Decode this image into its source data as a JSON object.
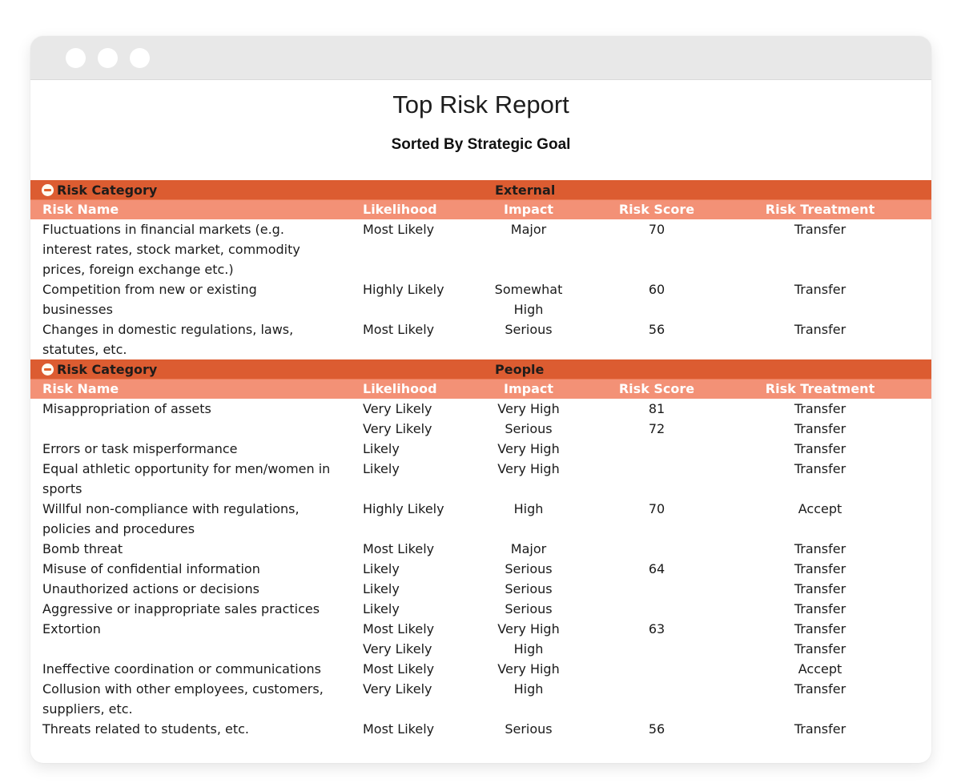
{
  "window_controls": [
    "close",
    "minimize",
    "maximize"
  ],
  "report": {
    "title": "Top Risk Report",
    "subtitle": "Sorted By Strategic Goal"
  },
  "table": {
    "category_header_label": "Risk Category",
    "columns": {
      "name": "Risk Name",
      "likelihood": "Likelihood",
      "impact": "Impact",
      "score": "Risk Score",
      "treatment": "Risk Treatment"
    },
    "sections": [
      {
        "category": "External",
        "rows": [
          {
            "name": "Fluctuations in financial markets (e.g. interest rates, stock market, commodity prices, foreign exchange etc.)",
            "likelihood": "Most Likely",
            "impact": "Major",
            "score": "70",
            "treatment": "Transfer"
          },
          {
            "name": "Competition from new or existing businesses",
            "likelihood": "Highly Likely",
            "impact": "Somewhat High",
            "score": "60",
            "treatment": "Transfer"
          },
          {
            "name": "Changes in domestic regulations, laws, statutes, etc.",
            "likelihood": "Most Likely",
            "impact": "Serious",
            "score": "56",
            "treatment": "Transfer"
          }
        ]
      },
      {
        "category": "People",
        "rows": [
          {
            "name": "Misappropriation of assets",
            "likelihood": "Very Likely",
            "impact": "Very High",
            "score": "81",
            "treatment": "Transfer"
          },
          {
            "name": "",
            "likelihood": "Very Likely",
            "impact": "Serious",
            "score": "72",
            "treatment": "Transfer"
          },
          {
            "name": "Errors or task misperformance",
            "likelihood": "Likely",
            "impact": "Very High",
            "score": "",
            "treatment": "Transfer"
          },
          {
            "name": "Equal athletic opportunity for men/women in sports",
            "likelihood": "Likely",
            "impact": "Very High",
            "score": "",
            "treatment": "Transfer"
          },
          {
            "name": "Willful non-compliance with regulations, policies and procedures",
            "likelihood": "Highly Likely",
            "impact": "High",
            "score": "70",
            "treatment": "Accept"
          },
          {
            "name": "Bomb threat",
            "likelihood": "Most Likely",
            "impact": "Major",
            "score": "",
            "treatment": "Transfer"
          },
          {
            "name": "Misuse of confidential information",
            "likelihood": "Likely",
            "impact": "Serious",
            "score": "64",
            "treatment": "Transfer"
          },
          {
            "name": "Unauthorized actions or decisions",
            "likelihood": "Likely",
            "impact": "Serious",
            "score": "",
            "treatment": "Transfer"
          },
          {
            "name": "Aggressive or inappropriate sales practices",
            "likelihood": "Likely",
            "impact": "Serious",
            "score": "",
            "treatment": "Transfer"
          },
          {
            "name": "Extortion",
            "likelihood": "Most Likely",
            "impact": "Very High",
            "score": "63",
            "treatment": "Transfer"
          },
          {
            "name": "",
            "likelihood": "Very Likely",
            "impact": "High",
            "score": "",
            "treatment": "Transfer"
          },
          {
            "name": "Ineffective coordination or communications",
            "likelihood": "Most Likely",
            "impact": "Very High",
            "score": "",
            "treatment": "Accept"
          },
          {
            "name": "Collusion with other employees, customers, suppliers, etc.",
            "likelihood": "Very Likely",
            "impact": "High",
            "score": "",
            "treatment": "Transfer"
          },
          {
            "name": "Threats related to students, etc.",
            "likelihood": "Most Likely",
            "impact": "Serious",
            "score": "56",
            "treatment": "Transfer"
          }
        ]
      }
    ]
  },
  "colors": {
    "category_header_bg": "#DC5C31",
    "column_header_bg": "#F39176",
    "column_header_text": "#FFFFFF",
    "category_text": "#1F1C1A",
    "body_text": "#1A1A1A",
    "titlebar_bg": "#E8E8E8"
  }
}
